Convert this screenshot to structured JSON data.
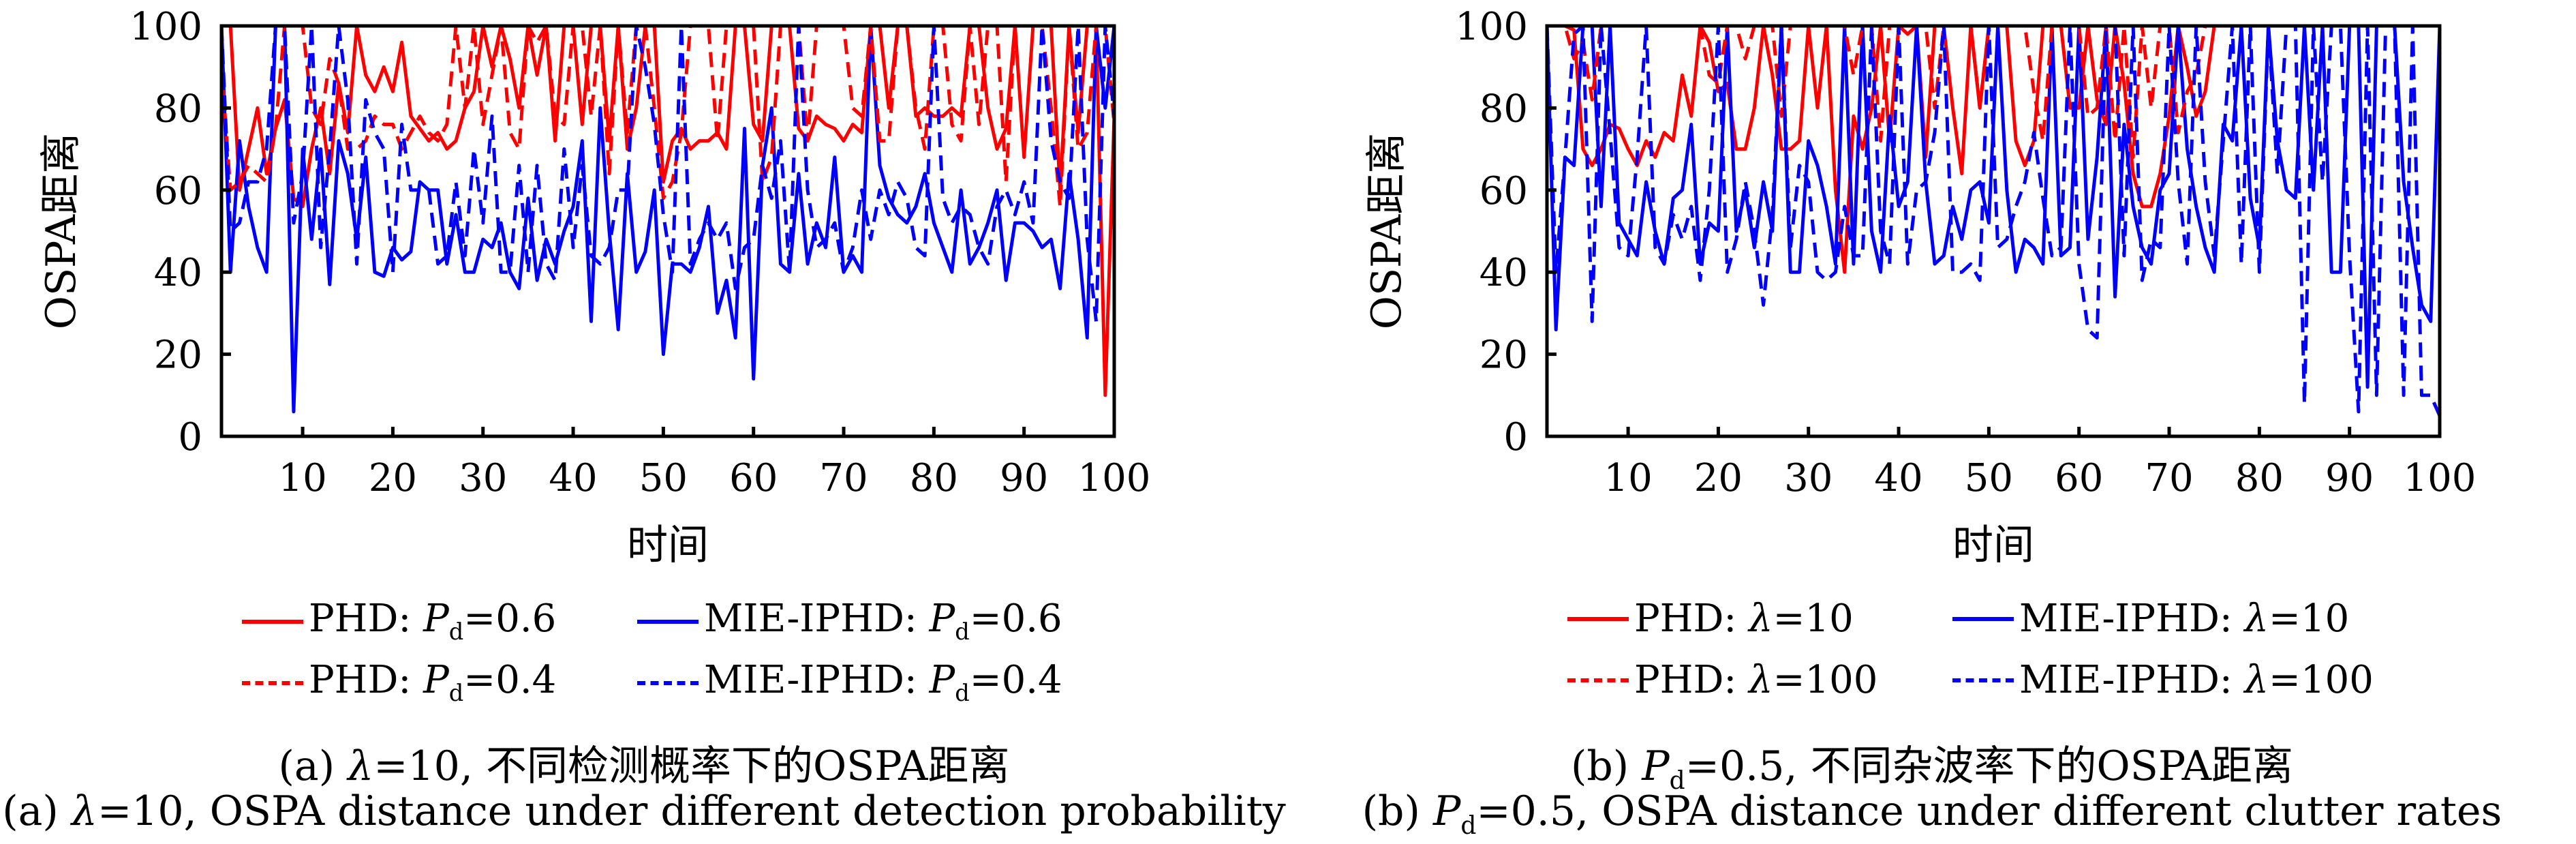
{
  "chart_data": [
    {
      "type": "line",
      "panel": "a",
      "xlabel": "时间",
      "ylabel": "OSPA距离",
      "xlim": [
        1,
        100
      ],
      "ylim": [
        0,
        100
      ],
      "xticks": [
        10,
        20,
        30,
        40,
        50,
        60,
        70,
        80,
        90,
        100
      ],
      "yticks": [
        0,
        20,
        40,
        60,
        80,
        100
      ],
      "grid": false,
      "legend_position": "below",
      "legend": [
        {
          "label_main": "PHD: ",
          "label_var": "P",
          "label_sub": "d",
          "label_tail": "=0.6",
          "color": "#ff0000",
          "style": "solid"
        },
        {
          "label_main": "MIE-IPHD: ",
          "label_var": "P",
          "label_sub": "d",
          "label_tail": "=0.6",
          "color": "#0000ff",
          "style": "solid"
        },
        {
          "label_main": "PHD: ",
          "label_var": "P",
          "label_sub": "d",
          "label_tail": "=0.4",
          "color": "#ff0000",
          "style": "dashed"
        },
        {
          "label_main": "MIE-IPHD: ",
          "label_var": "P",
          "label_sub": "d",
          "label_tail": "=0.4",
          "color": "#0000ff",
          "style": "dashed"
        }
      ],
      "series": [
        {
          "name": "PHD: Pd=0.6",
          "color": "#ff0000",
          "style": "solid",
          "values": [
            100,
            100,
            60,
            70,
            80,
            64,
            75,
            82,
            58,
            56,
            70,
            80,
            64,
            86,
            74,
            100,
            88,
            84,
            90,
            84,
            96,
            78,
            75,
            72,
            74,
            70,
            72,
            80,
            84,
            100,
            90,
            100,
            92,
            80,
            100,
            88,
            100,
            72,
            100,
            100,
            76,
            100,
            100,
            72,
            100,
            70,
            80,
            100,
            100,
            62,
            72,
            75,
            70,
            72,
            72,
            74,
            70,
            100,
            100,
            76,
            72,
            100,
            100,
            100,
            75,
            72,
            78,
            76,
            75,
            72,
            76,
            74,
            100,
            100,
            80,
            100,
            100,
            78,
            80,
            78,
            78,
            80,
            78,
            100,
            100,
            80,
            70,
            75,
            100,
            68,
            100,
            100,
            100,
            60,
            100,
            74,
            100,
            100,
            10,
            78
          ]
        },
        {
          "name": "MIE-IPHD: Pd=0.6",
          "color": "#0000ff",
          "style": "solid",
          "values": [
            100,
            40,
            72,
            56,
            46,
            40,
            100,
            100,
            6,
            70,
            48,
            70,
            37,
            72,
            64,
            48,
            68,
            40,
            39,
            46,
            43,
            45,
            62,
            60,
            60,
            42,
            54,
            40,
            40,
            48,
            46,
            52,
            40,
            36,
            58,
            38,
            48,
            42,
            50,
            56,
            72,
            28,
            80,
            50,
            26,
            64,
            40,
            45,
            60,
            20,
            42,
            42,
            40,
            46,
            56,
            30,
            38,
            24,
            75,
            14,
            66,
            80,
            42,
            40,
            64,
            42,
            52,
            46,
            68,
            40,
            44,
            40,
            100,
            66,
            58,
            54,
            52,
            56,
            64,
            52,
            46,
            40,
            60,
            42,
            46,
            52,
            60,
            38,
            52,
            52,
            50,
            46,
            48,
            36,
            64,
            48,
            24,
            100,
            80,
            100
          ]
        },
        {
          "name": "PHD: Pd=0.4",
          "color": "#ff0000",
          "style": "dashed",
          "values": [
            90,
            60,
            62,
            66,
            64,
            62,
            75,
            100,
            100,
            100,
            80,
            76,
            92,
            86,
            70,
            70,
            72,
            78,
            76,
            76,
            70,
            74,
            78,
            74,
            72,
            76,
            100,
            80,
            100,
            76,
            88,
            100,
            74,
            70,
            100,
            96,
            100,
            78,
            76,
            100,
            100,
            78,
            100,
            64,
            100,
            74,
            100,
            100,
            80,
            58,
            62,
            74,
            100,
            100,
            100,
            72,
            100,
            100,
            100,
            100,
            62,
            68,
            100,
            100,
            100,
            72,
            100,
            100,
            100,
            100,
            80,
            78,
            100,
            72,
            72,
            100,
            100,
            80,
            70,
            100,
            100,
            76,
            72,
            100,
            76,
            100,
            100,
            62,
            100,
            100,
            100,
            100,
            80,
            56,
            100,
            70,
            74,
            100,
            100,
            76
          ]
        },
        {
          "name": "MIE-IPHD: Pd=0.4",
          "color": "#0000ff",
          "style": "dashed",
          "values": [
            100,
            50,
            52,
            62,
            62,
            70,
            100,
            100,
            52,
            64,
            100,
            46,
            70,
            100,
            82,
            42,
            82,
            74,
            70,
            40,
            76,
            60,
            60,
            60,
            42,
            44,
            62,
            44,
            70,
            52,
            78,
            40,
            40,
            66,
            40,
            66,
            42,
            38,
            70,
            46,
            66,
            44,
            42,
            46,
            60,
            60,
            100,
            90,
            76,
            54,
            40,
            100,
            42,
            48,
            52,
            48,
            52,
            36,
            46,
            48,
            66,
            58,
            72,
            40,
            100,
            60,
            46,
            48,
            52,
            40,
            46,
            60,
            48,
            60,
            54,
            62,
            58,
            46,
            44,
            100,
            58,
            52,
            56,
            54,
            46,
            42,
            56,
            60,
            54,
            62,
            52,
            100,
            72,
            62,
            58,
            100,
            48,
            28,
            100,
            78
          ]
        }
      ]
    },
    {
      "type": "line",
      "panel": "b",
      "xlabel": "时间",
      "ylabel": "OSPA距离",
      "xlim": [
        1,
        100
      ],
      "ylim": [
        0,
        100
      ],
      "xticks": [
        10,
        20,
        30,
        40,
        50,
        60,
        70,
        80,
        90,
        100
      ],
      "yticks": [
        0,
        20,
        40,
        60,
        80,
        100
      ],
      "grid": false,
      "legend_position": "below",
      "legend": [
        {
          "label_main": "PHD: ",
          "label_var": "λ",
          "label_sub": "",
          "label_tail": "=10",
          "color": "#ff0000",
          "style": "solid"
        },
        {
          "label_main": "MIE-IPHD: ",
          "label_var": "λ",
          "label_sub": "",
          "label_tail": "=10",
          "color": "#0000ff",
          "style": "solid"
        },
        {
          "label_main": "PHD: ",
          "label_var": "λ",
          "label_sub": "",
          "label_tail": "=100",
          "color": "#ff0000",
          "style": "dashed"
        },
        {
          "label_main": "MIE-IPHD: ",
          "label_var": "λ",
          "label_sub": "",
          "label_tail": "=100",
          "color": "#0000ff",
          "style": "dashed"
        }
      ],
      "series": [
        {
          "name": "PHD: λ=10",
          "color": "#ff0000",
          "style": "solid",
          "values": [
            100,
            100,
            100,
            99,
            70,
            66,
            70,
            76,
            75,
            70,
            66,
            72,
            68,
            74,
            72,
            88,
            78,
            100,
            96,
            84,
            86,
            70,
            70,
            80,
            100,
            88,
            70,
            70,
            72,
            100,
            80,
            100,
            60,
            40,
            78,
            70,
            80,
            100,
            72,
            100,
            98,
            100,
            68,
            100,
            100,
            80,
            64,
            100,
            80,
            100,
            100,
            100,
            72,
            66,
            72,
            100,
            100,
            100,
            80,
            80,
            100,
            82,
            76,
            100,
            86,
            64,
            56,
            56,
            64,
            78,
            100,
            90,
            78,
            84,
            100,
            100,
            100,
            100,
            100,
            100,
            100,
            100,
            100,
            100,
            100,
            100,
            100,
            100,
            100,
            100,
            100,
            100,
            100,
            100,
            100,
            100,
            100,
            100,
            100,
            100
          ]
        },
        {
          "name": "MIE-IPHD: λ=10",
          "color": "#0000ff",
          "style": "solid",
          "values": [
            100,
            26,
            68,
            66,
            100,
            100,
            56,
            100,
            52,
            48,
            44,
            62,
            50,
            42,
            58,
            60,
            76,
            42,
            52,
            50,
            100,
            50,
            60,
            46,
            62,
            50,
            100,
            40,
            40,
            72,
            66,
            56,
            42,
            100,
            42,
            100,
            50,
            40,
            78,
            56,
            62,
            100,
            62,
            42,
            44,
            56,
            48,
            60,
            62,
            52,
            100,
            60,
            40,
            48,
            46,
            42,
            100,
            44,
            46,
            100,
            48,
            68,
            100,
            34,
            76,
            56,
            46,
            42,
            60,
            64,
            100,
            70,
            56,
            46,
            40,
            76,
            72,
            100,
            58,
            46,
            100,
            72,
            60,
            58,
            100,
            60,
            100,
            40,
            40,
            100,
            100,
            12,
            100,
            100,
            100,
            62,
            46,
            32,
            28,
            100
          ]
        },
        {
          "name": "PHD: λ=100",
          "color": "#ff0000",
          "style": "dashed",
          "values": [
            100,
            100,
            100,
            92,
            96,
            82,
            100,
            100,
            100,
            100,
            100,
            100,
            100,
            100,
            100,
            100,
            100,
            100,
            88,
            86,
            100,
            100,
            92,
            100,
            100,
            100,
            78,
            100,
            100,
            100,
            100,
            100,
            100,
            100,
            88,
            100,
            100,
            72,
            100,
            100,
            100,
            100,
            100,
            80,
            100,
            100,
            100,
            100,
            80,
            100,
            100,
            100,
            100,
            100,
            84,
            72,
            100,
            100,
            100,
            100,
            78,
            80,
            100,
            72,
            100,
            68,
            100,
            80,
            100,
            100,
            74,
            84,
            88,
            100,
            100,
            100,
            100,
            100,
            100,
            100,
            100,
            100,
            100,
            100,
            100,
            100,
            100,
            100,
            100,
            100,
            100,
            100,
            100,
            100,
            100,
            100,
            100,
            100,
            100,
            100
          ]
        },
        {
          "name": "MIE-IPHD: λ=100",
          "color": "#0000ff",
          "style": "dashed",
          "values": [
            100,
            40,
            68,
            98,
            100,
            28,
            100,
            74,
            46,
            44,
            68,
            100,
            46,
            42,
            54,
            48,
            56,
            38,
            60,
            100,
            40,
            48,
            62,
            50,
            32,
            54,
            100,
            46,
            66,
            62,
            40,
            38,
            40,
            56,
            44,
            44,
            100,
            50,
            42,
            100,
            42,
            60,
            62,
            74,
            100,
            40,
            40,
            42,
            38,
            100,
            46,
            48,
            56,
            62,
            74,
            58,
            44,
            46,
            100,
            42,
            26,
            24,
            100,
            100,
            44,
            100,
            38,
            48,
            46,
            100,
            62,
            42,
            100,
            62,
            44,
            72,
            100,
            42,
            100,
            40,
            100,
            64,
            100,
            100,
            8,
            100,
            62,
            100,
            100,
            44,
            6,
            100,
            10,
            100,
            100,
            10,
            100,
            10,
            10,
            5
          ]
        }
      ]
    }
  ],
  "captions": {
    "a_cn_prefix": "(a) ",
    "a_cn_var": "λ",
    "a_cn_text": "=10, 不同检测概率下的OSPA距离",
    "a_en_prefix": "(a) ",
    "a_en_var": "λ",
    "a_en_text": "=10, OSPA distance under different detection probability",
    "b_cn_prefix": "(b) ",
    "b_cn_var": "P",
    "b_cn_sub": "d",
    "b_cn_text": "=0.5, 不同杂波率下的OSPA距离",
    "b_en_prefix": "(b) ",
    "b_en_var": "P",
    "b_en_sub": "d",
    "b_en_text": "=0.5, OSPA distance under different clutter rates"
  }
}
